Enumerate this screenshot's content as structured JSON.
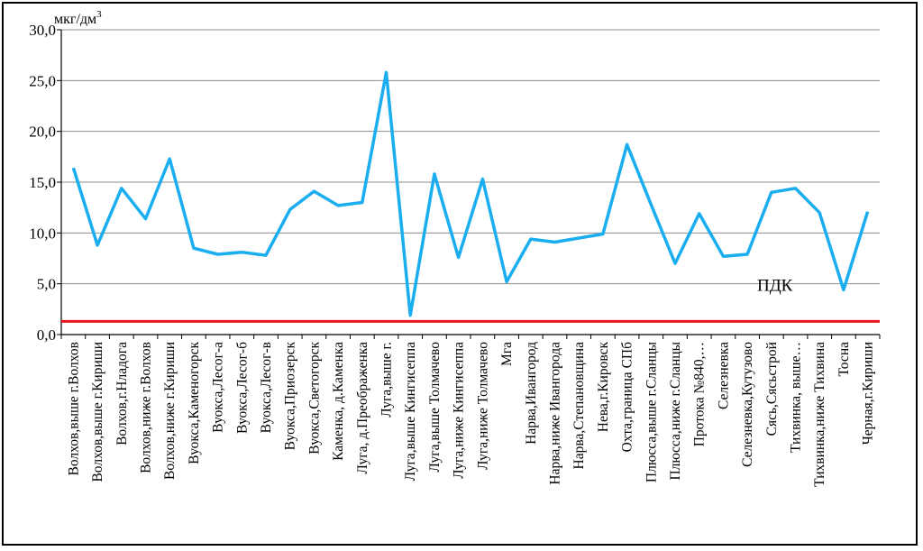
{
  "chart_data": {
    "type": "line",
    "unit_label": "мкг/дм",
    "unit_sup": "3",
    "reference_label": "ПДК",
    "reference_value": 1.3,
    "ylim": [
      0,
      30
    ],
    "yticks": [
      "0,0",
      "5,0",
      "10,0",
      "15,0",
      "20,0",
      "25,0",
      "30,0"
    ],
    "grid": true,
    "categories": [
      "Волхов,выше г.Волхов",
      "Волхов,выше г.Кириши",
      "Волхов,г.Нладога",
      "Волхов,ниже г.Волхов",
      "Волхов,ниже г.Кириши",
      "Вуокса,Каменогорск",
      "Вуокса,Лесог-а",
      "Вуокса,Лесог-б",
      "Вуокса,Лесог-в",
      "Вуокса,Приозерск",
      "Вуокса,Светогорск",
      "Каменка, д.Каменка",
      "Луга, д.Преображенка",
      "Луга,выше г.",
      "Луга,выше Кингисеппа",
      "Луга,выше Толмачево",
      "Луга,ниже Кингисеппа",
      "Луга,ниже Толмачево",
      "Мга",
      "Нарва,Ивангород",
      "Нарва,ниже Ивангорода",
      "Нарва,Степановщина",
      "Нева,г.Кировск",
      "Охта,граница СПб",
      "Плюсса,выше г.Сланцы",
      "Плюсса,ниже г.Сланцы",
      "Протока №840,…",
      "Селезневка",
      "Селезневка,Кутузово",
      "Сясь,Сясьстрой",
      "Тихвинка, выше…",
      "Тихвинка,ниже Тихвина",
      "Тосна",
      "Черная,г.Кириши"
    ],
    "series": [
      {
        "color": "#1aaef0",
        "values": [
          16.4,
          8.8,
          14.4,
          11.4,
          17.3,
          8.5,
          7.9,
          8.1,
          7.8,
          12.3,
          14.1,
          12.7,
          13.0,
          25.8,
          1.9,
          15.8,
          7.6,
          15.3,
          5.2,
          9.4,
          9.1,
          9.5,
          9.9,
          18.7,
          12.8,
          7.0,
          11.9,
          7.7,
          7.9,
          14.0,
          14.4,
          12.0,
          4.4,
          12.1
        ]
      }
    ],
    "reference_color": "#e8141c"
  }
}
